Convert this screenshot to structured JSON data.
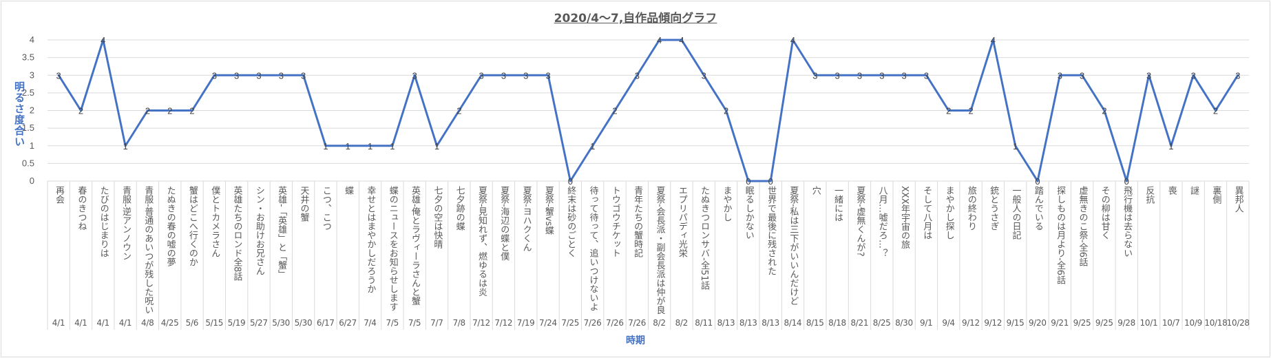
{
  "chart_data": {
    "type": "line",
    "title": "2020/4～7,自作品傾向グラフ",
    "xlabel": "時期",
    "ylabel": "明るさ度合い",
    "ylim": [
      0,
      4
    ],
    "yticks": [
      "0",
      "0.5",
      "1",
      "1.5",
      "2",
      "2.5",
      "3",
      "3.5",
      "4"
    ],
    "grid": true,
    "legend": "none",
    "line_color": "#4472C4",
    "categories": [
      "再会",
      "春のきつね",
      "たびのはじまりは",
      "青服-逆アンノウン",
      "青服-普通のあいつが残した呪い",
      "たぬきの春の嘘の夢",
      "蟹はどこへ行くのか",
      "僕とトカメラさん",
      "英雄たちのロンド全8話",
      "シン・お助けお兄さん",
      "英雄-「英雄」と「蟹」",
      "天井の蟹",
      "こつ、こつ",
      "蝶",
      "幸せとはまやかしだろうか",
      "蝶のニュースをお知らせします",
      "英雄-俺とラヴィーラさんと蟹",
      "七夕の空は快晴",
      "七夕跡の蝶",
      "夏祭-見知れず、燃ゆるは炎",
      "夏祭-海辺の蝶と僕",
      "夏祭-ヨハクくん",
      "夏祭-蟹vs蝶",
      "終末は砂のごとく",
      "待って待って、追いつけないよ",
      "トウゴウチケット",
      "青年たちの蟹時記",
      "夏祭-会長派・副会長派は仲が良い",
      "エプリパディ光栄",
      "たぬきつロンサバ-全51話",
      "まやかし",
      "眠るしかない",
      "世界で最後に残された",
      "夏祭-私は三下がいいんだけど",
      "穴",
      "一緒には",
      "夏祭-虚無くんが?",
      "八月…嘘だろ…？",
      "XXX年宇宙の旅",
      "そして八月は",
      "まやかし探し",
      "旅の終わり",
      "銃とうさぎ",
      "一般人の日記",
      "踏んでいる",
      "探しものは月より-全6話",
      "虚無きのこ祭-全6話",
      "その柳は甘く",
      "飛行機は去らない",
      "反抗",
      "喪",
      "謎",
      "裏側",
      "異邦人"
    ],
    "dates": [
      "4/1",
      "4/1",
      "4/1",
      "4/1",
      "4/8",
      "4/25",
      "5/6",
      "5/15",
      "5/19",
      "5/27",
      "5/30",
      "5/30",
      "6/17",
      "6/27",
      "7/4",
      "7/5",
      "7/5",
      "7/7",
      "7/8",
      "7/12",
      "7/12",
      "7/19",
      "7/24",
      "7/25",
      "7/26",
      "7/26",
      "7/26",
      "8/2",
      "8/2",
      "8/11",
      "8/13",
      "8/13",
      "8/13",
      "8/14",
      "8/15",
      "8/18",
      "8/21",
      "8/25",
      "8/30",
      "9/1",
      "9/4",
      "9/12",
      "9/12",
      "9/15",
      "9/20",
      "9/21",
      "9/25",
      "9/25",
      "9/28",
      "10/1",
      "10/7",
      "10/9",
      "10/18",
      "10/28"
    ],
    "values": [
      3,
      2,
      4,
      1,
      2,
      2,
      2,
      3,
      3,
      3,
      3,
      3,
      1,
      1,
      1,
      1,
      3,
      1,
      2,
      3,
      3,
      3,
      3,
      0,
      1,
      2,
      3,
      4,
      4,
      3,
      2,
      0,
      0,
      4,
      3,
      3,
      3,
      3,
      3,
      3,
      2,
      2,
      4,
      1,
      0,
      3,
      3,
      2,
      0,
      3,
      1,
      3,
      2,
      3
    ]
  }
}
